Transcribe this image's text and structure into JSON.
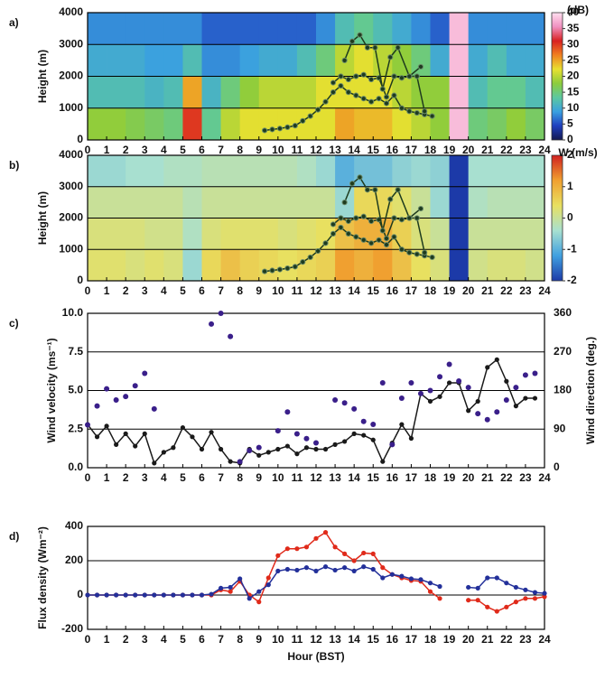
{
  "chart_data": [
    {
      "type": "heatmap",
      "label": "a)",
      "ylabel": "Height (m)",
      "colorbar_label": "(dB)",
      "xlim": [
        0,
        24
      ],
      "ylim": [
        0,
        4000
      ],
      "xticks": [
        0,
        1,
        2,
        3,
        4,
        5,
        6,
        7,
        8,
        9,
        10,
        11,
        12,
        13,
        14,
        15,
        16,
        17,
        18,
        19,
        20,
        21,
        22,
        23,
        24
      ],
      "yticks": [
        0,
        1000,
        2000,
        3000,
        4000
      ],
      "grid": true,
      "x_bins": [
        0,
        1,
        2,
        3,
        4,
        5,
        6,
        7,
        8,
        9,
        10,
        11,
        12,
        13,
        14,
        15,
        16,
        17,
        18,
        19,
        20,
        21,
        22,
        23,
        24
      ],
      "y_bins": [
        0,
        1000,
        2000,
        3000,
        4000
      ],
      "z": [
        [
          18,
          18,
          17,
          16,
          15,
          30,
          14,
          20,
          22,
          22,
          22,
          22,
          22,
          25,
          24,
          24,
          22,
          20,
          18,
          38,
          15,
          16,
          18,
          16
        ],
        [
          12,
          12,
          12,
          11,
          12,
          25,
          11,
          15,
          18,
          20,
          20,
          20,
          22,
          22,
          22,
          22,
          20,
          18,
          18,
          38,
          12,
          14,
          14,
          12
        ],
        [
          10,
          10,
          10,
          9,
          9,
          12,
          8,
          8,
          9,
          10,
          10,
          12,
          15,
          20,
          22,
          20,
          18,
          15,
          10,
          38,
          10,
          12,
          10,
          10
        ],
        [
          8,
          8,
          8,
          8,
          8,
          8,
          6,
          6,
          6,
          6,
          6,
          6,
          8,
          12,
          14,
          12,
          10,
          8,
          6,
          38,
          8,
          8,
          8,
          8
        ]
      ],
      "zlim": [
        0,
        40
      ],
      "zticks": [
        0,
        5,
        10,
        15,
        20,
        25,
        30,
        35,
        40
      ],
      "colormap": [
        "#141850",
        "#1f3fbf",
        "#3aa0e0",
        "#5cc8a0",
        "#8ccc3c",
        "#e8e030",
        "#f08020",
        "#d82020",
        "#f090c0",
        "#ffe0f0"
      ],
      "series": [
        {
          "color": "#1e3b1e",
          "x": [
            9.3,
            9.7,
            10.1,
            10.5,
            10.9,
            11.3,
            11.7,
            12.1,
            12.5,
            12.9,
            13.3,
            13.7,
            14.1,
            14.5,
            14.9,
            15.3,
            15.7,
            16.1,
            16.5,
            16.9,
            17.3,
            17.7,
            18.1
          ],
          "values": [
            300,
            330,
            360,
            400,
            450,
            600,
            750,
            950,
            1200,
            1500,
            1700,
            1500,
            1400,
            1300,
            1200,
            1300,
            1150,
            1400,
            1000,
            900,
            850,
            800,
            750
          ]
        },
        {
          "color": "#1e3b1e",
          "x": [
            12.9,
            13.3,
            13.7,
            14.1,
            14.5,
            14.9,
            15.3,
            15.7,
            16.1,
            16.5,
            16.9,
            17.3,
            17.7
          ],
          "values": [
            1800,
            2000,
            1900,
            2000,
            2050,
            1900,
            1950,
            1350,
            2000,
            1950,
            2000,
            2000,
            900
          ]
        },
        {
          "color": "#1e3b1e",
          "x": [
            13.5,
            13.9,
            14.3,
            14.7,
            15.1,
            15.5,
            15.9,
            16.3,
            16.9,
            17.5
          ],
          "values": [
            2500,
            3100,
            3300,
            2900,
            2900,
            1600,
            2600,
            2900,
            2000,
            2300
          ]
        }
      ]
    },
    {
      "type": "heatmap",
      "label": "b)",
      "ylabel": "Height (m)",
      "colorbar_label": "W (m/s)",
      "xlim": [
        0,
        24
      ],
      "ylim": [
        0,
        4000
      ],
      "xticks": [
        0,
        1,
        2,
        3,
        4,
        5,
        6,
        7,
        8,
        9,
        10,
        11,
        12,
        13,
        14,
        15,
        16,
        17,
        18,
        19,
        20,
        21,
        22,
        23,
        24
      ],
      "yticks": [
        0,
        1000,
        2000,
        3000,
        4000
      ],
      "grid": true,
      "x_bins": [
        0,
        1,
        2,
        3,
        4,
        5,
        6,
        7,
        8,
        9,
        10,
        11,
        12,
        13,
        14,
        15,
        16,
        17,
        18,
        19,
        20,
        21,
        22,
        23,
        24
      ],
      "y_bins": [
        0,
        1000,
        2000,
        3000,
        4000
      ],
      "z": [
        [
          0.3,
          0.3,
          0.2,
          0.3,
          0.2,
          -0.5,
          0.5,
          0.8,
          0.6,
          0.5,
          0.4,
          0.5,
          0.6,
          1.2,
          1.0,
          1.2,
          0.8,
          0.4,
          0.2,
          -2,
          0.1,
          0.2,
          0.2,
          0.1
        ],
        [
          0.2,
          0.2,
          0.2,
          0.1,
          0.1,
          -0.3,
          0.2,
          0.3,
          0.3,
          0.3,
          0.2,
          0.3,
          0.4,
          0.8,
          1.0,
          1.0,
          0.6,
          0.2,
          0,
          -2,
          0,
          0,
          0,
          0
        ],
        [
          0,
          0,
          0,
          0,
          0,
          -0.2,
          0,
          0,
          0,
          0,
          0,
          0,
          0,
          -0.5,
          0.5,
          0.5,
          0.3,
          0,
          -0.5,
          -2,
          -0.3,
          -0.2,
          -0.2,
          -0.2
        ],
        [
          -0.5,
          -0.5,
          -0.4,
          -0.4,
          -0.3,
          -0.3,
          -0.2,
          -0.2,
          -0.2,
          -0.2,
          -0.2,
          -0.3,
          -0.5,
          -1.0,
          -0.8,
          -0.8,
          -0.6,
          -0.5,
          -0.6,
          -2,
          -0.4,
          -0.4,
          -0.4,
          -0.4
        ]
      ],
      "zlim": [
        -2,
        2
      ],
      "zticks": [
        -2,
        -1,
        0,
        1,
        2
      ],
      "colormap": [
        "#1c3aa8",
        "#40a0e0",
        "#a8e0d0",
        "#e8e060",
        "#f0a030",
        "#d02020"
      ],
      "series": [
        {
          "color": "#1e3b1e",
          "x": [
            9.3,
            9.7,
            10.1,
            10.5,
            10.9,
            11.3,
            11.7,
            12.1,
            12.5,
            12.9,
            13.3,
            13.7,
            14.1,
            14.5,
            14.9,
            15.3,
            15.7,
            16.1,
            16.5,
            16.9,
            17.3,
            17.7,
            18.1
          ],
          "values": [
            300,
            330,
            360,
            400,
            450,
            600,
            750,
            950,
            1200,
            1500,
            1700,
            1500,
            1400,
            1300,
            1200,
            1300,
            1150,
            1400,
            1000,
            900,
            850,
            800,
            750
          ]
        },
        {
          "color": "#1e3b1e",
          "x": [
            12.9,
            13.3,
            13.7,
            14.1,
            14.5,
            14.9,
            15.3,
            15.7,
            16.1,
            16.5,
            16.9,
            17.3,
            17.7
          ],
          "values": [
            1800,
            2000,
            1900,
            2000,
            2050,
            1900,
            1950,
            1350,
            2000,
            1950,
            2000,
            2000,
            900
          ]
        },
        {
          "color": "#1e3b1e",
          "x": [
            13.5,
            13.9,
            14.3,
            14.7,
            15.1,
            15.5,
            15.9,
            16.3,
            16.9,
            17.5
          ],
          "values": [
            2500,
            3100,
            3300,
            2900,
            2900,
            1600,
            2600,
            2900,
            2000,
            2300
          ]
        }
      ]
    },
    {
      "type": "line",
      "label": "c)",
      "ylabel": "Wind velocity (ms⁻¹)",
      "y2label": "Wind direction (deg.)",
      "xlim": [
        0,
        24
      ],
      "ylim": [
        0,
        10
      ],
      "y2lim": [
        0,
        360
      ],
      "xticks": [
        0,
        1,
        2,
        3,
        4,
        5,
        6,
        7,
        8,
        9,
        10,
        11,
        12,
        13,
        14,
        15,
        16,
        17,
        18,
        19,
        20,
        21,
        22,
        23,
        24
      ],
      "yticks": [
        {
          "value": 0,
          "label": "0.0"
        },
        {
          "value": 2.5,
          "label": "2.5"
        },
        {
          "value": 5,
          "label": "5.0"
        },
        {
          "value": 7.5,
          "label": "7.5"
        },
        {
          "value": 10,
          "label": "10.0"
        }
      ],
      "y2ticks": [
        0,
        90,
        180,
        270,
        360
      ],
      "grid": true,
      "x": [
        0,
        0.5,
        1,
        1.5,
        2,
        2.5,
        3,
        3.5,
        4,
        4.5,
        5,
        5.5,
        6,
        6.5,
        7,
        7.5,
        8,
        8.5,
        9,
        9.5,
        10,
        10.5,
        11,
        11.5,
        12,
        12.5,
        13,
        13.5,
        14,
        14.5,
        15,
        15.5,
        16,
        16.5,
        17,
        17.5,
        18,
        18.5,
        19,
        19.5,
        20,
        20.5,
        21,
        21.5,
        22,
        22.5,
        23,
        23.5
      ],
      "series": [
        {
          "color": "#1a1a1a",
          "style": "line",
          "values": [
            2.8,
            2.0,
            2.7,
            1.5,
            2.2,
            1.4,
            2.2,
            0.3,
            1.0,
            1.3,
            2.6,
            2.0,
            1.2,
            2.3,
            1.2,
            0.4,
            0.3,
            1.2,
            0.8,
            1.0,
            1.2,
            1.4,
            0.9,
            1.3,
            1.2,
            1.2,
            1.5,
            1.7,
            2.2,
            2.1,
            1.8,
            0.4,
            1.6,
            2.8,
            1.9,
            4.8,
            4.3,
            4.6,
            5.5,
            5.5,
            3.7,
            4.3,
            6.5,
            7.0,
            5.6,
            4.0,
            4.5,
            4.5
          ]
        },
        {
          "color": "#3a1f8a",
          "style": "markers",
          "axis": "y2",
          "values": [
            100,
            144,
            184,
            158,
            166,
            191,
            220,
            137,
            null,
            null,
            null,
            null,
            null,
            335,
            360,
            306,
            14,
            40,
            47,
            null,
            86,
            130,
            79,
            68,
            58,
            null,
            158,
            151,
            137,
            108,
            101,
            198,
            54,
            162,
            198,
            173,
            180,
            212,
            241,
            202,
            187,
            126,
            112,
            130,
            158,
            187,
            216,
            220
          ]
        }
      ]
    },
    {
      "type": "line",
      "label": "d)",
      "ylabel": "Flux density (Wm⁻²)",
      "xlabel": "Hour (BST)",
      "xlim": [
        0,
        24
      ],
      "ylim": [
        -200,
        400
      ],
      "xticks": [
        0,
        1,
        2,
        3,
        4,
        5,
        6,
        7,
        8,
        9,
        10,
        11,
        12,
        13,
        14,
        15,
        16,
        17,
        18,
        19,
        20,
        21,
        22,
        23,
        24
      ],
      "yticks": [
        -200,
        0,
        200,
        400
      ],
      "grid": true,
      "x": [
        0,
        0.5,
        1,
        1.5,
        2,
        2.5,
        3,
        3.5,
        4,
        4.5,
        5,
        5.5,
        6,
        6.5,
        7,
        7.5,
        8,
        8.5,
        9,
        9.5,
        10,
        10.5,
        11,
        11.5,
        12,
        12.5,
        13,
        13.5,
        14,
        14.5,
        15,
        15.5,
        16,
        16.5,
        17,
        17.5,
        18,
        18.5,
        19,
        19.5,
        20,
        20.5,
        21,
        21.5,
        22,
        22.5,
        23,
        23.5,
        24
      ],
      "series": [
        {
          "color": "#e02a1a",
          "style": "line",
          "values": [
            0,
            0,
            0,
            0,
            0,
            0,
            0,
            0,
            0,
            0,
            0,
            0,
            0,
            0,
            30,
            20,
            80,
            0,
            -40,
            100,
            230,
            270,
            270,
            280,
            330,
            365,
            280,
            240,
            200,
            245,
            240,
            160,
            120,
            100,
            85,
            80,
            20,
            -20,
            null,
            null,
            -30,
            -30,
            -70,
            -95,
            -70,
            -40,
            -20,
            -20,
            -10
          ]
        },
        {
          "color": "#23309a",
          "style": "line",
          "values": [
            0,
            0,
            0,
            0,
            0,
            0,
            0,
            0,
            0,
            0,
            0,
            0,
            0,
            5,
            40,
            45,
            95,
            -20,
            20,
            60,
            140,
            150,
            145,
            160,
            140,
            165,
            145,
            160,
            140,
            165,
            150,
            100,
            120,
            110,
            95,
            90,
            70,
            50,
            null,
            null,
            45,
            40,
            100,
            100,
            70,
            45,
            30,
            15,
            10
          ]
        }
      ]
    }
  ]
}
